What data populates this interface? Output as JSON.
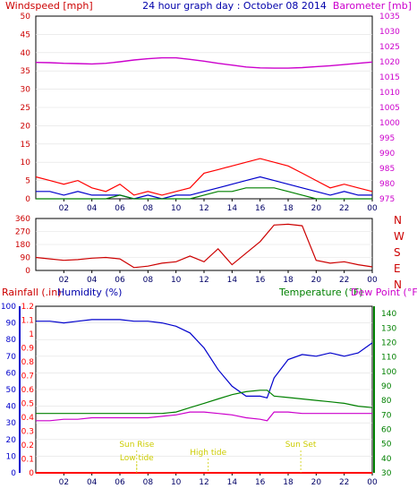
{
  "chart_data": [
    {
      "type": "line",
      "title": "24 hour graph day : October 08 2014",
      "left_axis_label": "Windspeed [mph]",
      "right_axis_label": "Barometer [mb]",
      "x_ticks": [
        "02",
        "04",
        "06",
        "08",
        "10",
        "12",
        "14",
        "16",
        "18",
        "20",
        "22",
        "00"
      ],
      "x_range": [
        0,
        24
      ],
      "left_ticks": [
        "0",
        "5",
        "10",
        "15",
        "20",
        "25",
        "30",
        "35",
        "40",
        "45",
        "50"
      ],
      "left_range": [
        0,
        50
      ],
      "right_ticks": [
        "975",
        "980",
        "985",
        "990",
        "995",
        "1000",
        "1005",
        "1010",
        "1015",
        "1020",
        "1025",
        "1030",
        "1035"
      ],
      "right_range": [
        975,
        1035
      ],
      "colors": {
        "wind": "#ff0000",
        "avg_wind": "#0000cc",
        "min_wind": "#008000",
        "barometer": "#cc00cc",
        "axis_left": "#cc0000",
        "axis_right": "#cc00cc"
      },
      "series": [
        {
          "name": "gust",
          "axis": "left",
          "x": [
            0,
            1,
            2,
            3,
            4,
            5,
            6,
            7,
            8,
            9,
            10,
            11,
            12,
            13,
            14,
            15,
            16,
            17,
            18,
            19,
            20,
            21,
            22,
            23,
            24
          ],
          "values": [
            6,
            5,
            4,
            5,
            3,
            2,
            4,
            1,
            2,
            1,
            2,
            3,
            7,
            8,
            9,
            10,
            11,
            10,
            9,
            7,
            5,
            3,
            4,
            3,
            2
          ]
        },
        {
          "name": "average",
          "axis": "left",
          "x": [
            0,
            1,
            2,
            3,
            4,
            5,
            6,
            7,
            8,
            9,
            10,
            11,
            12,
            13,
            14,
            15,
            16,
            17,
            18,
            19,
            20,
            21,
            22,
            23,
            24
          ],
          "values": [
            2,
            2,
            1,
            2,
            1,
            1,
            1,
            0,
            1,
            0,
            1,
            1,
            2,
            3,
            4,
            5,
            6,
            5,
            4,
            3,
            2,
            1,
            2,
            1,
            1
          ]
        },
        {
          "name": "minimum",
          "axis": "left",
          "x": [
            0,
            1,
            2,
            3,
            4,
            5,
            6,
            7,
            8,
            9,
            10,
            11,
            12,
            13,
            14,
            15,
            16,
            17,
            18,
            19,
            20,
            21,
            22,
            23,
            24
          ],
          "values": [
            0,
            0,
            0,
            0,
            0,
            0,
            1,
            0,
            0,
            0,
            0,
            0,
            1,
            2,
            2,
            3,
            3,
            3,
            2,
            1,
            0,
            0,
            0,
            0,
            0
          ]
        },
        {
          "name": "barometer",
          "axis": "right",
          "x": [
            0,
            1,
            2,
            3,
            4,
            5,
            6,
            7,
            8,
            9,
            10,
            11,
            12,
            13,
            14,
            15,
            16,
            17,
            18,
            19,
            20,
            21,
            22,
            23,
            24
          ],
          "values": [
            1019.8,
            1019.7,
            1019.5,
            1019.4,
            1019.3,
            1019.5,
            1020.0,
            1020.6,
            1021.0,
            1021.3,
            1021.3,
            1020.8,
            1020.2,
            1019.5,
            1018.9,
            1018.3,
            1018.0,
            1017.9,
            1017.9,
            1018.1,
            1018.4,
            1018.7,
            1019.1,
            1019.5,
            1019.9
          ]
        }
      ]
    },
    {
      "type": "line",
      "right_labels": [
        "N",
        "W",
        "S",
        "E",
        "N"
      ],
      "left_ticks": [
        "0",
        "90",
        "180",
        "270",
        "360"
      ],
      "left_range": [
        0,
        360
      ],
      "x_ticks": [
        "02",
        "04",
        "06",
        "08",
        "10",
        "12",
        "14",
        "16",
        "18",
        "20",
        "22",
        "00"
      ],
      "x_range": [
        0,
        24
      ],
      "colors": {
        "direction": "#cc0000"
      },
      "series": [
        {
          "name": "wind direction",
          "x": [
            0,
            1,
            2,
            3,
            4,
            5,
            6,
            7,
            8,
            9,
            10,
            11,
            12,
            13,
            14,
            15,
            16,
            17,
            18,
            19,
            20,
            21,
            22,
            23,
            24
          ],
          "values": [
            90,
            80,
            70,
            75,
            85,
            90,
            80,
            20,
            30,
            50,
            60,
            100,
            60,
            150,
            40,
            120,
            200,
            315,
            320,
            310,
            70,
            50,
            60,
            40,
            25
          ]
        }
      ]
    },
    {
      "type": "line",
      "left_axis_label_1": "Rainfall (.in)",
      "left_axis_label_2": "Humidity (%)",
      "right_axis_label_1": "Temperature (°F)",
      "right_axis_label_2": "Dew Point (°F)",
      "humidity_ticks": [
        "0",
        "10",
        "20",
        "30",
        "40",
        "50",
        "60",
        "70",
        "80",
        "90",
        "100"
      ],
      "humidity_range": [
        0,
        100
      ],
      "rain_ticks": [
        "0",
        "0.1",
        "0.2",
        "0.3",
        "0.4",
        "0.5",
        "0.6",
        "0.7",
        "0.8",
        "0.9",
        "1",
        "1.1",
        "1.2"
      ],
      "rain_range": [
        0,
        1.2
      ],
      "temp_ticks": [
        "30",
        "40",
        "50",
        "60",
        "70",
        "80",
        "90",
        "100",
        "110",
        "120",
        "130",
        "140"
      ],
      "temp_range": [
        30,
        145
      ],
      "x_ticks": [
        "02",
        "04",
        "06",
        "08",
        "10",
        "12",
        "14",
        "16",
        "18",
        "20",
        "22",
        "00"
      ],
      "x_range": [
        0,
        24
      ],
      "annotations": [
        {
          "text": "Sun Rise",
          "x": 7.2
        },
        {
          "text": "Low tide",
          "x": 7.2
        },
        {
          "text": "High tide",
          "x": 12.3
        },
        {
          "text": "Sun Set",
          "x": 18.9
        }
      ],
      "colors": {
        "humidity": "#0000cc",
        "temperature": "#008000",
        "dewpoint": "#cc00cc",
        "rain": "#ff0000",
        "annotation": "#cccc00"
      },
      "series": [
        {
          "name": "humidity",
          "axis": "humidity",
          "x": [
            0,
            1,
            2,
            3,
            4,
            5,
            6,
            7,
            8,
            9,
            10,
            11,
            12,
            13,
            14,
            15,
            16,
            16.5,
            17,
            18,
            19,
            20,
            21,
            22,
            23,
            24
          ],
          "values": [
            91,
            91,
            90,
            91,
            92,
            92,
            92,
            91,
            91,
            90,
            88,
            84,
            75,
            62,
            52,
            46,
            46,
            45,
            57,
            68,
            71,
            70,
            72,
            70,
            72,
            78
          ]
        },
        {
          "name": "temperature",
          "axis": "temp",
          "x": [
            0,
            1,
            2,
            3,
            4,
            5,
            6,
            7,
            8,
            9,
            10,
            11,
            12,
            13,
            14,
            15,
            16,
            16.5,
            17,
            18,
            19,
            20,
            21,
            22,
            23,
            24
          ],
          "values": [
            71,
            71,
            71,
            71,
            71,
            71,
            71,
            71,
            71,
            71,
            72,
            75,
            78,
            81,
            84,
            86,
            87,
            87,
            83,
            82,
            81,
            80,
            79,
            78,
            76,
            75
          ]
        },
        {
          "name": "dew point",
          "axis": "temp",
          "x": [
            0,
            1,
            2,
            3,
            4,
            5,
            6,
            7,
            8,
            9,
            10,
            11,
            12,
            13,
            14,
            15,
            16,
            16.5,
            17,
            18,
            19,
            20,
            21,
            22,
            23,
            24
          ],
          "values": [
            66,
            66,
            67,
            67,
            68,
            68,
            68,
            68,
            68,
            69,
            70,
            72,
            72,
            71,
            70,
            68,
            67,
            66,
            72,
            72,
            71,
            71,
            71,
            71,
            71,
            71
          ]
        },
        {
          "name": "rainfall",
          "axis": "rain",
          "x": [
            0,
            24
          ],
          "values": [
            0,
            0
          ]
        }
      ]
    }
  ]
}
